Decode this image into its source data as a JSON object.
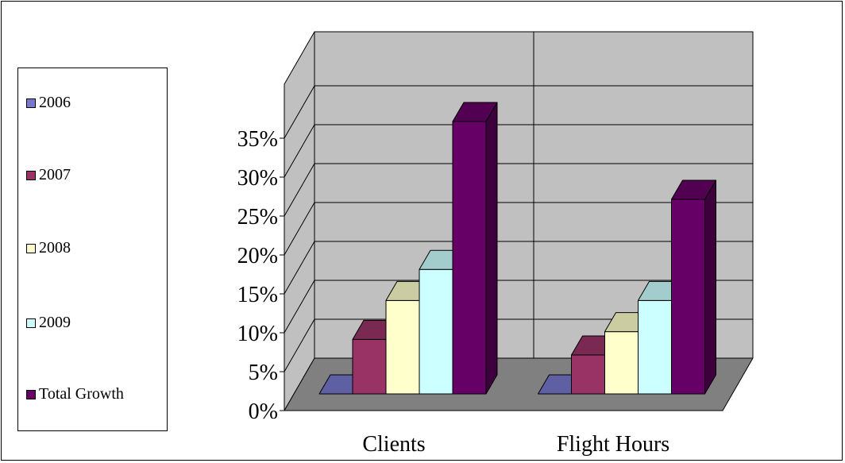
{
  "chart_data": {
    "type": "bar",
    "categories": [
      "Clients",
      "Flight Hours"
    ],
    "series": [
      {
        "name": "2006",
        "color": "#7777cc",
        "values": [
          0,
          0
        ]
      },
      {
        "name": "2007",
        "color": "#993366",
        "values": [
          7,
          5
        ]
      },
      {
        "name": "2008",
        "color": "#ffffcc",
        "values": [
          12,
          8
        ]
      },
      {
        "name": "2009",
        "color": "#ccffff",
        "values": [
          16,
          12
        ]
      },
      {
        "name": "Total Growth",
        "color": "#660066",
        "values": [
          35,
          25
        ]
      }
    ],
    "yticks": [
      "0%",
      "5%",
      "10%",
      "15%",
      "20%",
      "25%",
      "30%",
      "35%"
    ],
    "ylim": [
      0,
      35
    ],
    "three_d": true,
    "grid": true,
    "legend_position": "left",
    "title": "",
    "xlabel": "",
    "ylabel": ""
  }
}
